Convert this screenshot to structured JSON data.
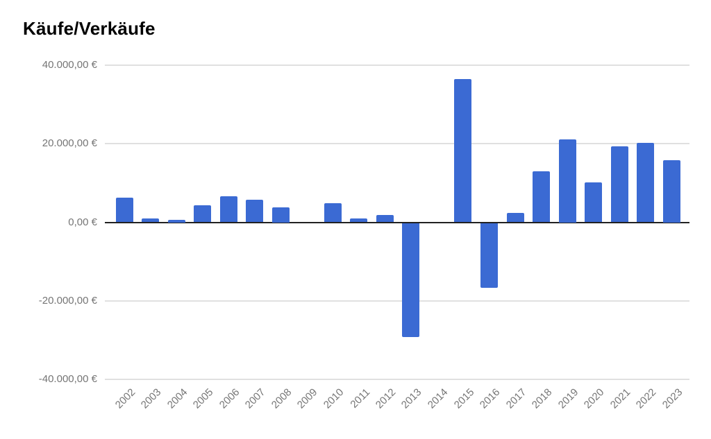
{
  "chart_data": {
    "type": "bar",
    "title": "Käufe/Verkäufe",
    "legend": "none",
    "grid": true,
    "ylim": [
      -40000,
      40000
    ],
    "y_ticks": [
      {
        "value": 40000,
        "label": "40.000,00 €"
      },
      {
        "value": 20000,
        "label": "20.000,00 €"
      },
      {
        "value": 0,
        "label": "0,00 €"
      },
      {
        "value": -20000,
        "label": "-20.000,00 €"
      },
      {
        "value": -40000,
        "label": "-40.000,00 €"
      }
    ],
    "categories": [
      "2002",
      "2003",
      "2004",
      "2005",
      "2006",
      "2007",
      "2008",
      "2009",
      "2010",
      "2011",
      "2012",
      "2013",
      "2014",
      "2015",
      "2016",
      "2017",
      "2018",
      "2019",
      "2020",
      "2021",
      "2022",
      "2023"
    ],
    "values": [
      6300,
      1000,
      700,
      4300,
      6700,
      5800,
      3800,
      0,
      4800,
      1000,
      1900,
      -29000,
      0,
      36500,
      -16500,
      2400,
      13000,
      21200,
      10100,
      19400,
      20300,
      15900
    ],
    "currency_suffix": "€",
    "colors": {
      "bar": "#3b6ad3",
      "gridline": "#e0e0e0",
      "zero_line": "#212121",
      "axis_label": "#757575",
      "title": "#000000",
      "background": "#ffffff"
    }
  }
}
